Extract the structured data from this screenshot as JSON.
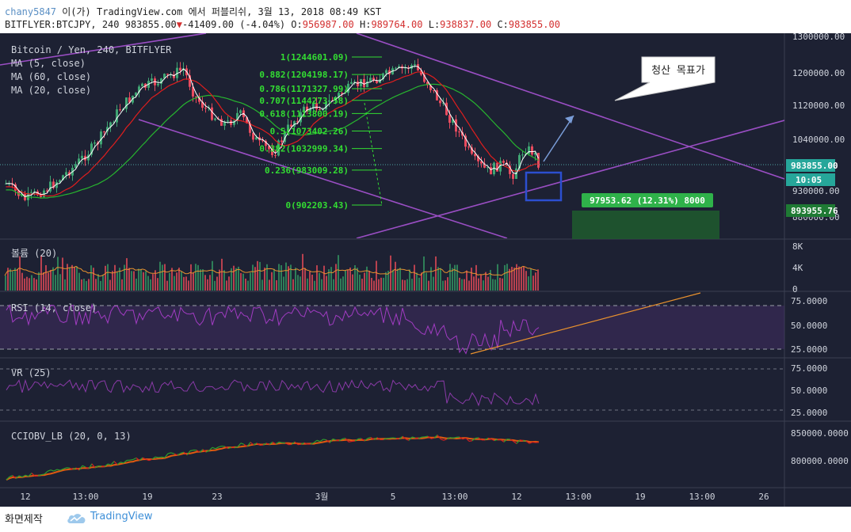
{
  "header": {
    "username": "chany5847",
    "publish_text": " 이(가) TradingView.com 에서 퍼블리쉬, 3월 13, 2018 08:49 KST",
    "symbol": "BITFLYER:BTCJPY, 240",
    "last_price": "983855.00",
    "change_arrow": "▼",
    "change": "-41409.00 (-4.04%)",
    "ohlc": [
      {
        "k": "O:",
        "v": "956987.00"
      },
      {
        "k": "H:",
        "v": "989764.00"
      },
      {
        "k": "L:",
        "v": "938837.00"
      },
      {
        "k": "C:",
        "v": "983855.00"
      }
    ]
  },
  "legend": {
    "title": "Bitcoin / Yen, 240, BITFLYER",
    "ma5": "MA (5, close)",
    "ma60": "MA (60, close)",
    "ma20": "MA (20, close)"
  },
  "fib_levels": [
    {
      "label": "1(1244601.09)",
      "price": 1244601.09
    },
    {
      "label": "0.882(1204198.17)",
      "price": 1204198.17
    },
    {
      "label": "0.786(1171327.99)",
      "price": 1171327.99
    },
    {
      "label": "0.707(1144273.58)",
      "price": 1144273.58
    },
    {
      "label": "0.618(1113800.19)",
      "price": 1113800.19
    },
    {
      "label": "0.5(1073402.26)",
      "price": 1073402.26
    },
    {
      "label": "0.382(1032999.34)",
      "price": 1032999.34
    },
    {
      "label": "0.236(983009.28)",
      "price": 983009.28
    },
    {
      "label": "0(902203.43)",
      "price": 902203.43
    }
  ],
  "annotation": {
    "callout": "청산 목표가",
    "measure": "97953.62 (12.31%) 8000"
  },
  "price_axis": {
    "ticks": [
      "1300000.00",
      "1200000.00",
      "1120000.00",
      "1040000.00",
      "930000.00",
      "880000.00"
    ],
    "last_price_label": "983855.00",
    "countdown": "10:05",
    "target_label": "893955.76"
  },
  "volume": {
    "title": "볼륨 (20)",
    "ticks": [
      "8K",
      "4K",
      "0"
    ]
  },
  "rsi": {
    "title": "RSI (14, close)",
    "ticks": [
      "75.0000",
      "50.0000",
      "25.0000"
    ]
  },
  "vr": {
    "title": "VR (25)",
    "ticks": [
      "75.0000",
      "50.0000",
      "25.0000"
    ]
  },
  "cciobv": {
    "title": "CCIOBV_LB (20, 0, 13)",
    "ticks": [
      "850000.0000",
      "800000.0000"
    ]
  },
  "time_axis": [
    "12",
    "13:00",
    "19",
    "23",
    "3월",
    "5",
    "13:00",
    "12",
    "13:00",
    "19",
    "13:00",
    "26"
  ],
  "footer": {
    "capture": "화면제작",
    "brand": "TradingView"
  },
  "colors": {
    "bg": "#1d2133",
    "up": "#3fa573",
    "down": "#e84b5e",
    "channel": "#9a4ec4",
    "ma5": "#ffffff",
    "ma20": "#27b52f",
    "ma60": "#e01e1e",
    "fib": "#33dd33"
  }
}
